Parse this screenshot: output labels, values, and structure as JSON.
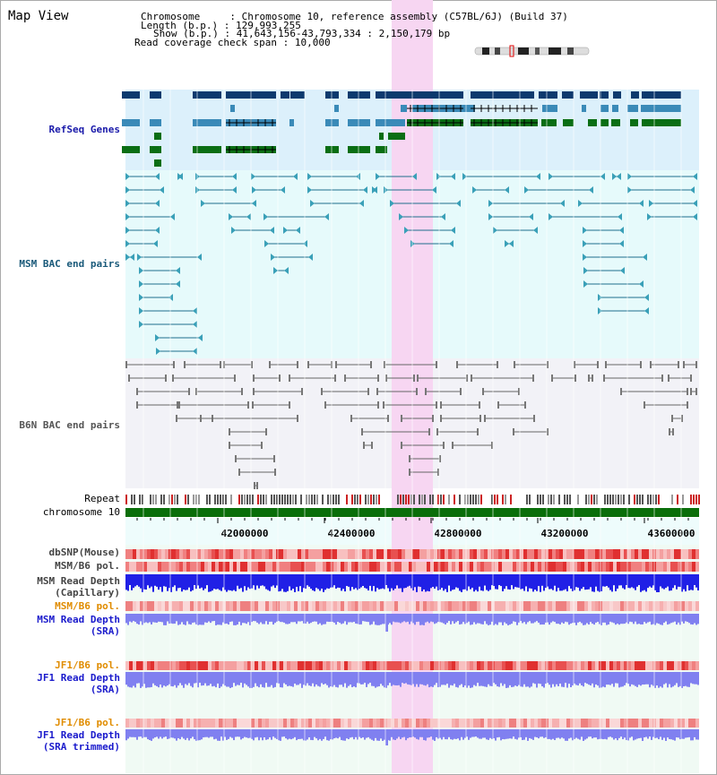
{
  "page": {
    "title": "Map View"
  },
  "info": {
    "chromosome_label": "Chromosome",
    "chromosome_value": "Chromosome 10, reference assembly (C57BL/6J) (Build 37)",
    "length_label": "Length (b.p.)",
    "length_value": "129,993,255",
    "show_label": "Show (b.p.)",
    "show_value": "41,643,156-43,793,334 : 2,150,179 bp",
    "coverage_label": "Read coverage check span",
    "coverage_value": "10,000"
  },
  "tracks": {
    "refseq": "RefSeq Genes",
    "msm_bac": "MSM BAC end pairs",
    "b6n_bac": "B6N BAC end pairs",
    "repeat": "Repeat",
    "chromosome": "chromosome 10",
    "dbsnp": "dbSNP(Mouse)",
    "msm_b6_pol": "MSM/B6 pol.",
    "msm_read_depth": "MSM Read Depth",
    "msm_read_depth_sub": "(Capillary)",
    "msm_b6_pol_2": "MSM/B6 pol.",
    "msm_read_depth_sra": "MSM Read Depth",
    "msm_read_depth_sra_sub": "(SRA)",
    "jf1_b6_pol": "JF1/B6 pol.",
    "jf1_read_depth": "JF1 Read Depth",
    "jf1_read_depth_sub": "(SRA)",
    "jf1_b6_pol_2": "JF1/B6 pol.",
    "jf1_read_depth_trim": "JF1 Read Depth",
    "jf1_read_depth_trim_sub": "(SRA trimmed)"
  },
  "axis": {
    "ticks": [
      "42000000",
      "42400000",
      "42800000",
      "43200000",
      "43600000"
    ]
  },
  "colors": {
    "highlight": "#f7d6f2",
    "refseq_bg": "#dcf0fb",
    "msm_bg": "#e6fafb",
    "b6n_bg": "#f2f2f7",
    "gene_dark": "#0d3a6e",
    "gene_mid": "#3a8ab8",
    "gene_green": "#0a6e14",
    "msm_line": "#1f6e8c",
    "b6n_line": "#666666",
    "chrom_green": "#0a6e0a",
    "depth_blue": "#2020e6",
    "depth_light": "#8080f0"
  }
}
